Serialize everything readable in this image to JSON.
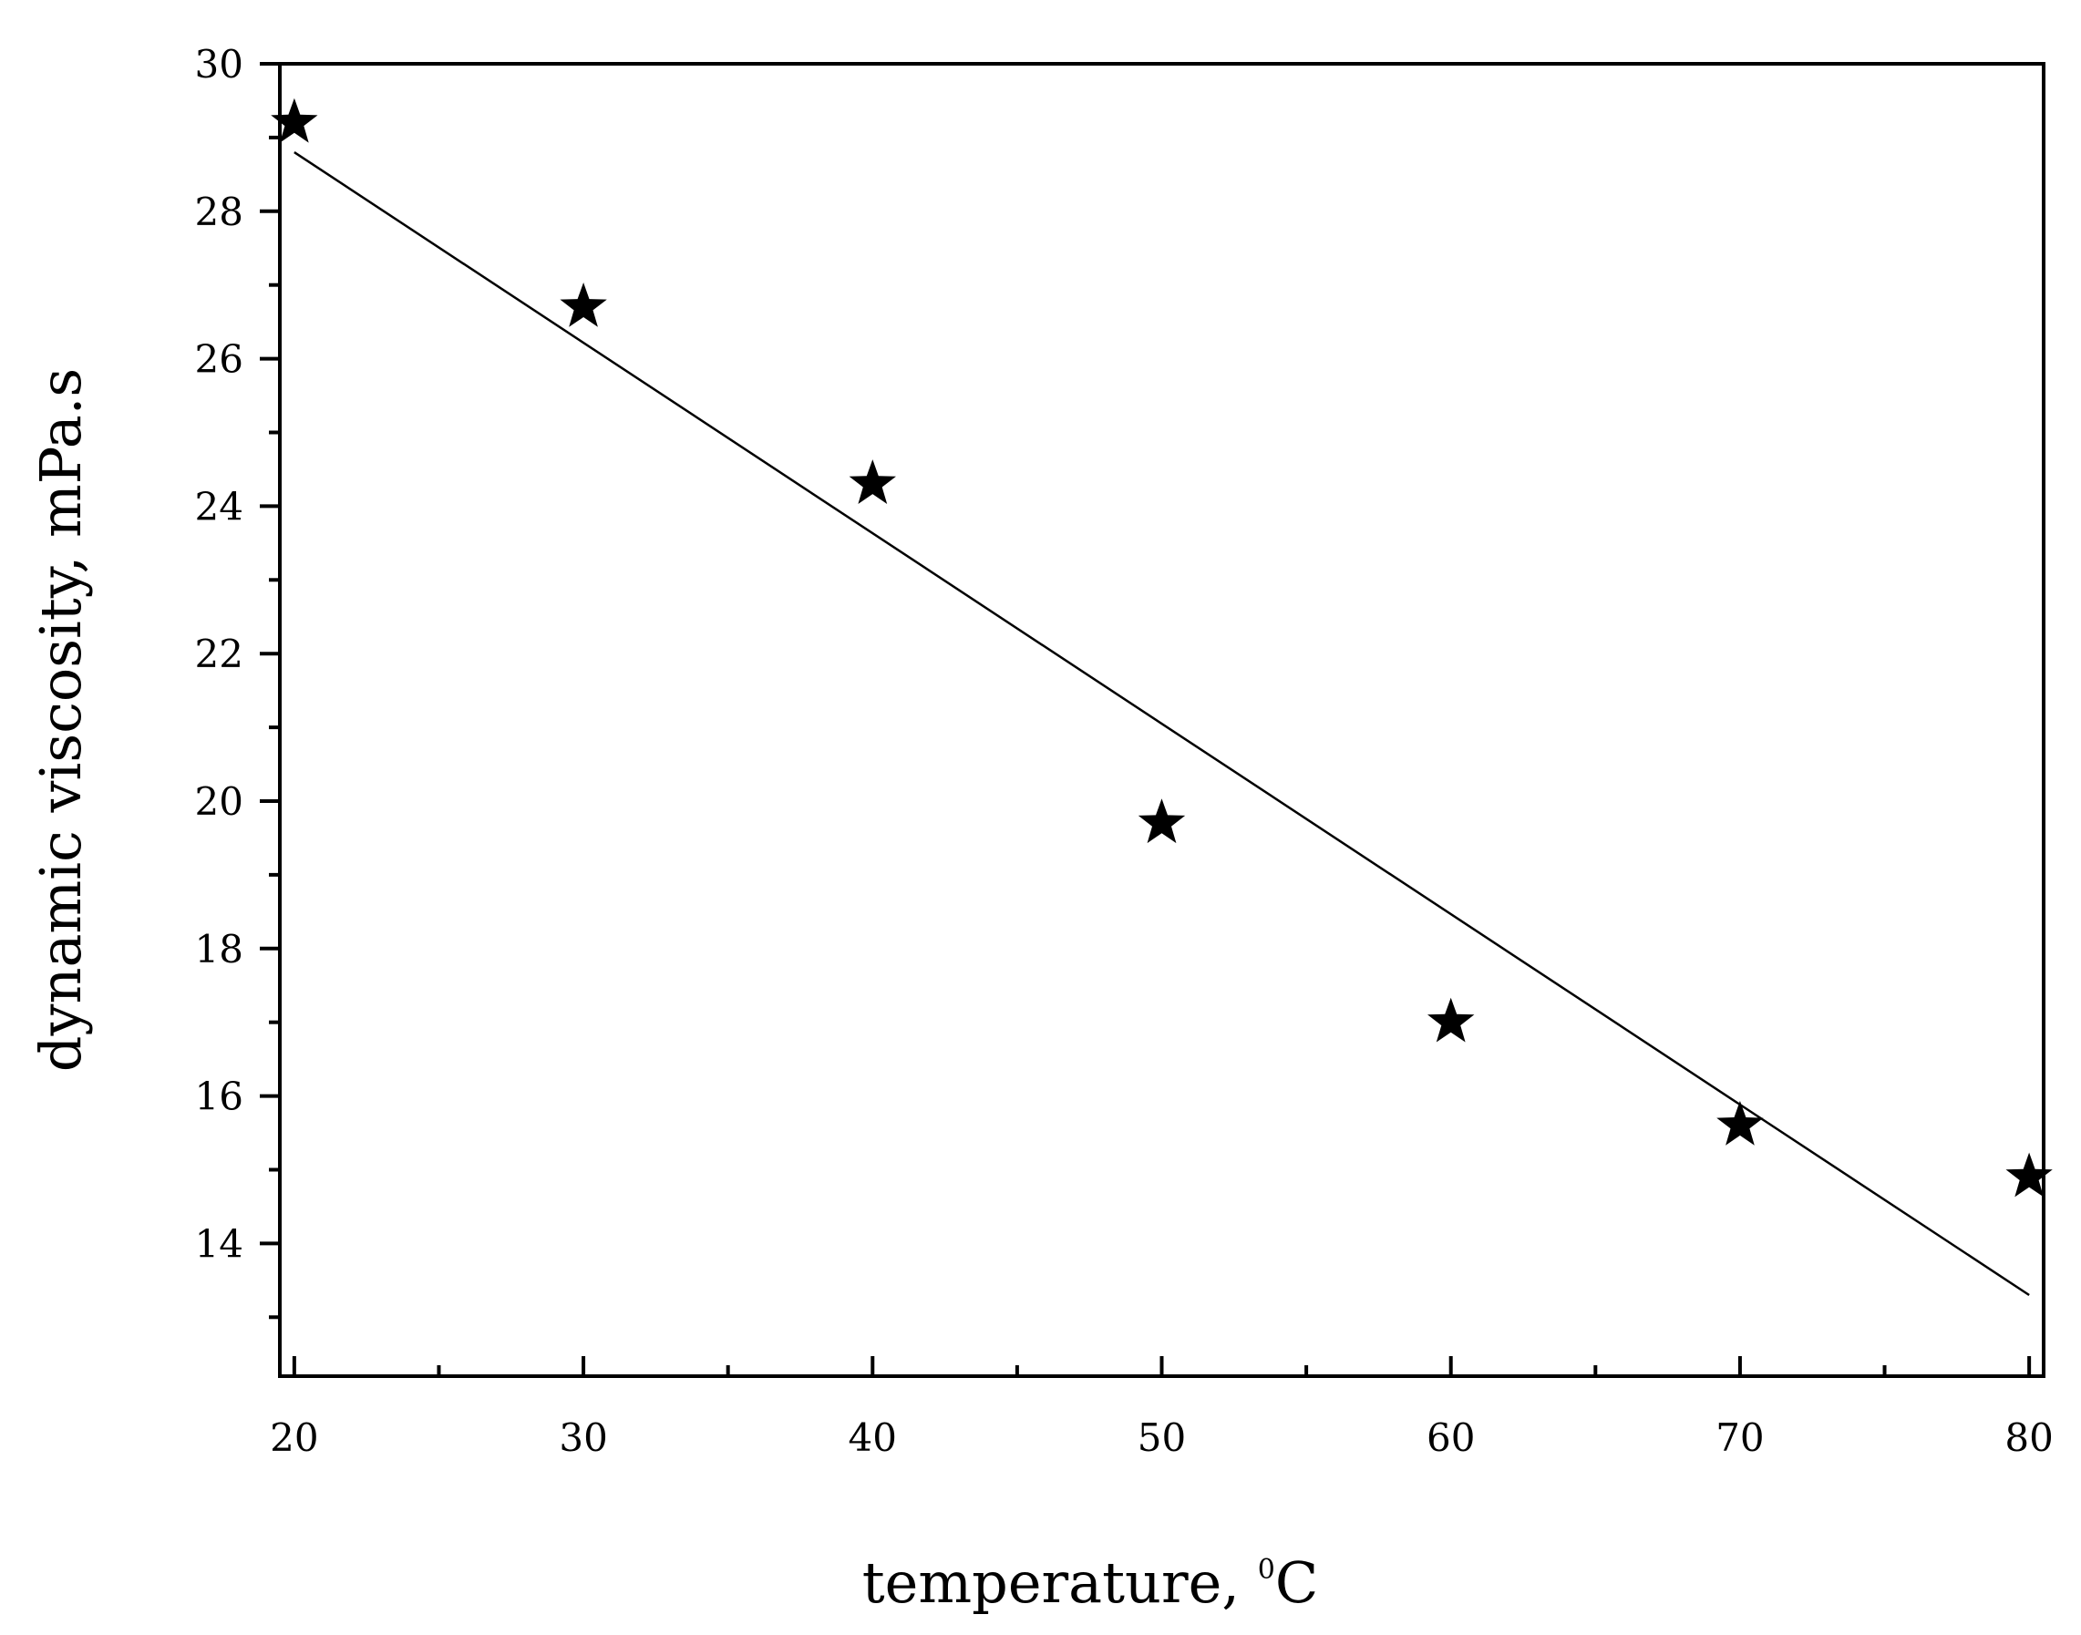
{
  "chart_data": {
    "type": "scatter",
    "xlabel": "temperature, ",
    "xlabel_sup": "0",
    "xlabel_unit": "C",
    "ylabel": "dynamic viscosity, mPa.s",
    "xlim": [
      19.5,
      80.5
    ],
    "ylim": [
      12.2,
      30
    ],
    "x_ticks": [
      20,
      30,
      40,
      50,
      60,
      70,
      80
    ],
    "y_ticks": [
      14,
      16,
      18,
      20,
      22,
      24,
      26,
      28,
      30
    ],
    "x_minor_step": 5,
    "y_minor_step": 1,
    "grid": false,
    "marker": "star",
    "series": [
      {
        "x": [
          20,
          30,
          40,
          50,
          60,
          70,
          80
        ],
        "y": [
          29.2,
          26.7,
          24.3,
          19.7,
          17.0,
          15.6,
          14.9
        ]
      }
    ],
    "fit_line": {
      "x": [
        20,
        80
      ],
      "y": [
        28.8,
        13.3
      ]
    },
    "colors": {
      "marks": "#000000",
      "background": "#ffffff"
    }
  }
}
